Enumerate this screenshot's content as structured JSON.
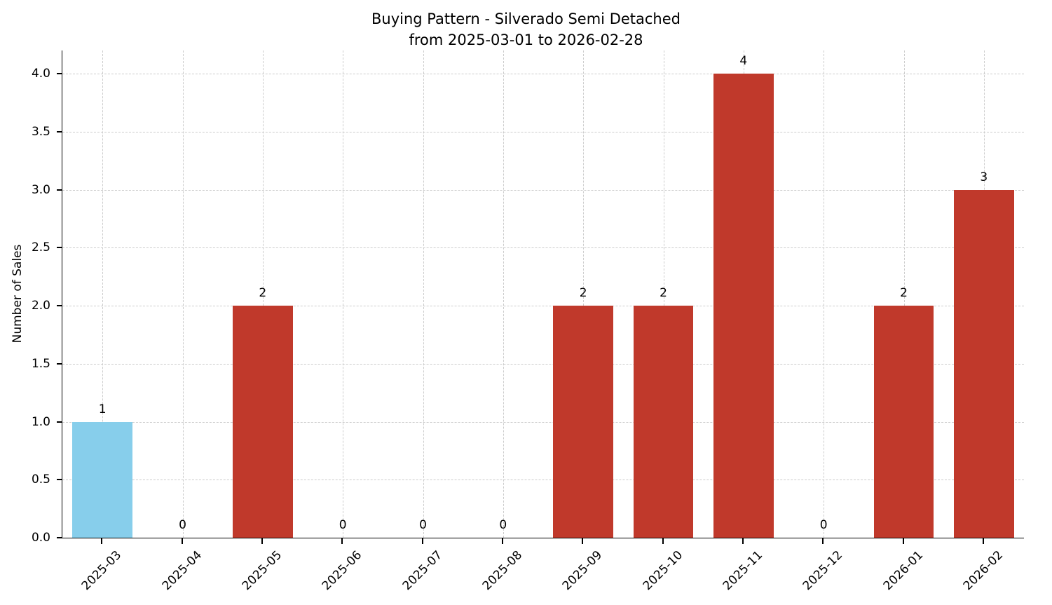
{
  "chart_data": {
    "type": "bar",
    "title": "Buying Pattern - Silverado Semi Detached",
    "subtitle": "from 2025-03-01 to 2026-02-28",
    "xlabel": "",
    "ylabel": "Number of Sales",
    "categories": [
      "2025-03",
      "2025-04",
      "2025-05",
      "2025-06",
      "2025-07",
      "2025-08",
      "2025-09",
      "2025-10",
      "2025-11",
      "2025-12",
      "2026-01",
      "2026-02"
    ],
    "values": [
      1,
      0,
      2,
      0,
      0,
      0,
      2,
      2,
      4,
      0,
      2,
      3
    ],
    "value_labels": [
      "1",
      "0",
      "2",
      "0",
      "0",
      "0",
      "2",
      "2",
      "4",
      "0",
      "2",
      "3"
    ],
    "bar_colors": [
      "#87ceeb",
      "#c0392b",
      "#c0392b",
      "#c0392b",
      "#c0392b",
      "#c0392b",
      "#c0392b",
      "#c0392b",
      "#c0392b",
      "#c0392b",
      "#c0392b",
      "#c0392b"
    ],
    "ylim": [
      0,
      4.2
    ],
    "yticks": [
      0,
      0.5,
      1,
      1.5,
      2,
      2.5,
      3,
      3.5,
      4
    ],
    "grid": true,
    "grid_style": "dashed",
    "legend": "none",
    "colors": {
      "highlight_bar": "#87ceeb",
      "default_bar": "#c0392b",
      "grid": "#cccccc",
      "axis": "#000000",
      "text": "#000000",
      "background": "#ffffff"
    }
  }
}
